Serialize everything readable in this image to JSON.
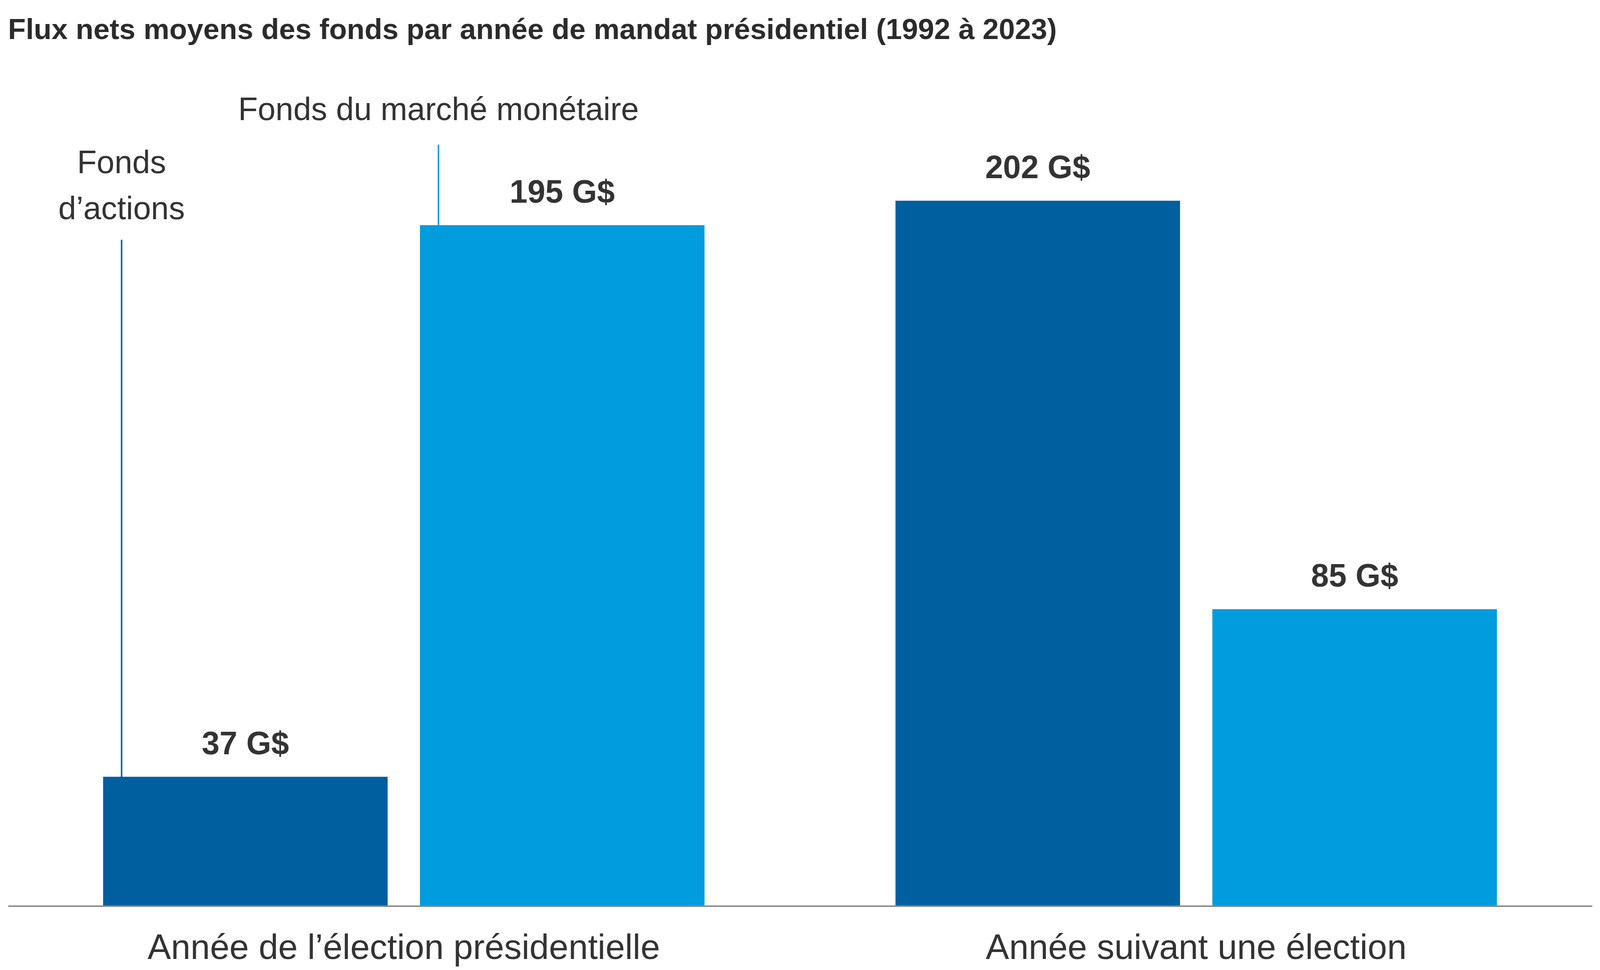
{
  "chart_data": {
    "type": "bar",
    "title": "Flux nets moyens des fonds par année de mandat présidentiel (1992 à 2023)",
    "categories": [
      "Année de l’élection présidentielle",
      "Année suivant une élection"
    ],
    "series": [
      {
        "name": "Fonds d’actions",
        "color": "#005f9e",
        "values": [
          37,
          202
        ],
        "value_labels": [
          "37 G$",
          "202 G$"
        ]
      },
      {
        "name": "Fonds du marché monétaire",
        "color": "#009cde",
        "values": [
          195,
          85
        ],
        "value_labels": [
          "195 G$",
          "85 G$"
        ]
      }
    ],
    "ylim": [
      0,
      202
    ],
    "data_labels": true,
    "tick_labels": "x"
  }
}
